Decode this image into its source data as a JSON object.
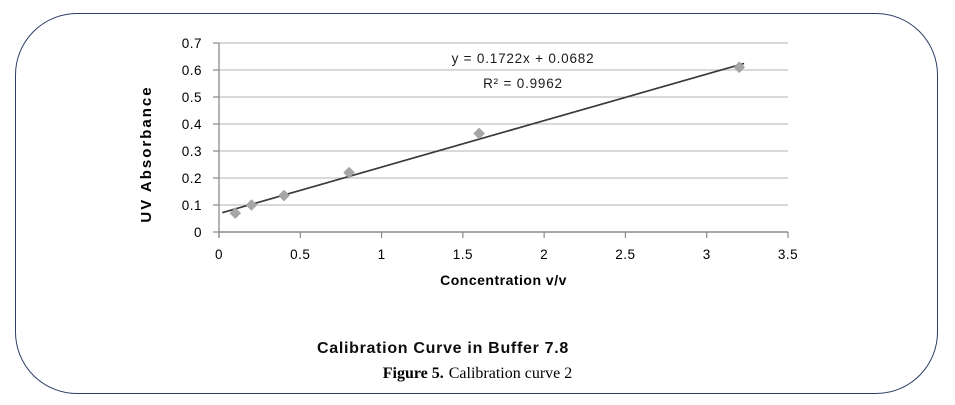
{
  "frame": {
    "border_color": "#2c3f66"
  },
  "figure": {
    "title": "Calibration Curve in Buffer 7.8",
    "caption_label": "Figure 5.",
    "caption_text": "Calibration curve 2"
  },
  "chart_data": {
    "type": "scatter",
    "title": "Calibration Curve in Buffer 7.8",
    "xlabel": "Concentration v/v",
    "ylabel": "UV Absorbance",
    "xlim": [
      0,
      3.5
    ],
    "ylim": [
      0,
      0.7
    ],
    "x_ticks": [
      0,
      0.5,
      1,
      1.5,
      2,
      2.5,
      3,
      3.5
    ],
    "y_ticks": [
      0,
      0.1,
      0.2,
      0.3,
      0.4,
      0.5,
      0.6,
      0.7
    ],
    "grid": "horizontal-only",
    "legend": "none",
    "marker": "diamond",
    "points": [
      {
        "x": 0.1,
        "y": 0.07
      },
      {
        "x": 0.2,
        "y": 0.1
      },
      {
        "x": 0.4,
        "y": 0.135
      },
      {
        "x": 0.8,
        "y": 0.22
      },
      {
        "x": 1.6,
        "y": 0.365
      },
      {
        "x": 3.2,
        "y": 0.61
      }
    ],
    "trendline": {
      "slope": 0.1722,
      "intercept": 0.0682,
      "equation_label": "y = 0.1722x + 0.0682",
      "r_squared_label": "R² = 0.9962",
      "x_start": 0.02,
      "x_end": 3.23
    },
    "colors": {
      "marker": "#a6a6a6",
      "marker_edge": "#969696",
      "trendline": "#3a3a3a",
      "gridline": "#b3b3b3",
      "axis": "#8a8a8a",
      "text": "#000000"
    }
  }
}
